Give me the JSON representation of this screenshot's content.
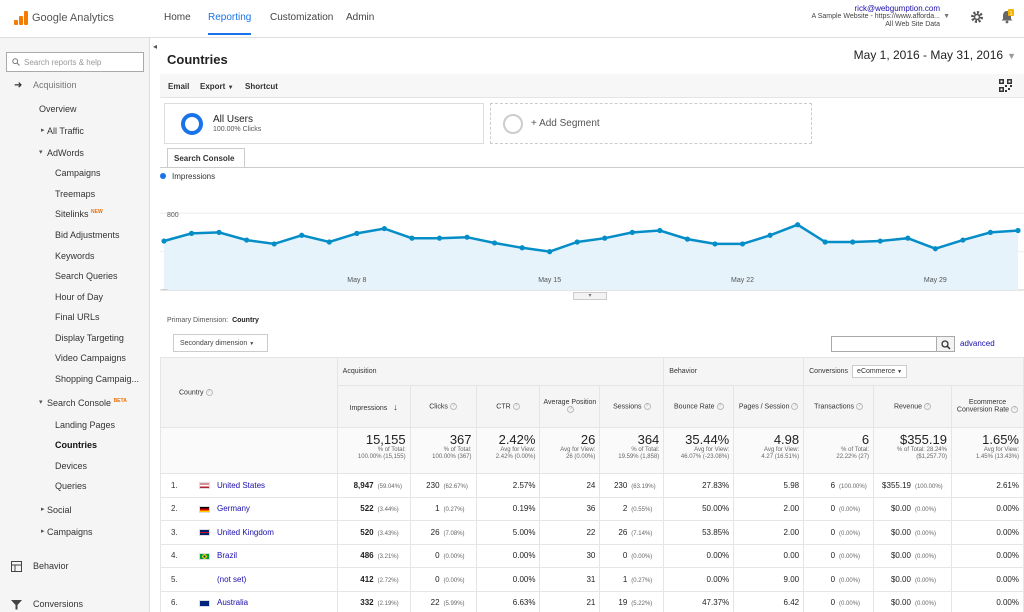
{
  "app": {
    "name": "Google Analytics"
  },
  "topnav": {
    "home": "Home",
    "reporting": "Reporting",
    "customization": "Customization",
    "admin": "Admin"
  },
  "account": {
    "email": "rick@webgumption.com",
    "site": "A Sample Website - https://www.afforda...",
    "view": "All Web Site Data",
    "notifications": "1"
  },
  "sidebar": {
    "search_placeholder": "Search reports & help",
    "acquisition": "Acquisition",
    "overview": "Overview",
    "all_traffic": "All Traffic",
    "adwords": "AdWords",
    "adwords_items": [
      "Campaigns",
      "Treemaps",
      "Sitelinks",
      "Bid Adjustments",
      "Keywords",
      "Search Queries",
      "Hour of Day",
      "Final URLs",
      "Display Targeting",
      "Video Campaigns",
      "Shopping Campaig..."
    ],
    "new_badge": "NEW",
    "search_console": "Search Console",
    "beta_badge": "BETA",
    "sc_items": [
      "Landing Pages",
      "Countries",
      "Devices",
      "Queries"
    ],
    "social": "Social",
    "campaigns": "Campaigns",
    "behavior": "Behavior",
    "conversions": "Conversions"
  },
  "page": {
    "title": "Countries",
    "date_range": "May 1, 2016 - May 31, 2016"
  },
  "toolbar": {
    "email": "Email",
    "export": "Export",
    "shortcut": "Shortcut"
  },
  "segments": {
    "name": "All Users",
    "pct": "100.00% Clicks",
    "add": "+ Add Segment"
  },
  "tab": {
    "label": "Search Console"
  },
  "colors": {
    "accent": "#1a73e8",
    "line": "#058dc7",
    "fill": "#e6f3fa",
    "link": "#1a0dab"
  },
  "chart_data": {
    "type": "line",
    "series": [
      {
        "name": "Impressions",
        "values": [
          510,
          590,
          600,
          520,
          480,
          570,
          500,
          590,
          640,
          540,
          540,
          550,
          490,
          440,
          400,
          500,
          540,
          600,
          620,
          530,
          480,
          480,
          570,
          680,
          500,
          500,
          510,
          540,
          430,
          520,
          600,
          620
        ]
      }
    ],
    "y_ticks": [
      "800",
      "400"
    ],
    "x_labels": [
      "May 8",
      "May 15",
      "May 22",
      "May 29"
    ],
    "start_label": "...",
    "ylim": [
      0,
      1000
    ]
  },
  "primary_dimension": {
    "label": "Primary Dimension:",
    "value": "Country"
  },
  "secondary_dimension": "Secondary dimension",
  "advanced": "advanced",
  "table": {
    "groups": {
      "acq": "Acquisition",
      "beh": "Behavior",
      "conv": "Conversions",
      "ecom": "eCommerce"
    },
    "columns": {
      "country": "Country",
      "impressions": "Impressions",
      "clicks": "Clicks",
      "ctr": "CTR",
      "pos": "Average Position",
      "sessions": "Sessions",
      "bounce": "Bounce Rate",
      "pps": "Pages / Session",
      "trans": "Transactions",
      "rev": "Revenue",
      "ecr": "Ecommerce Conversion Rate"
    },
    "totals": {
      "impressions": {
        "v": "15,155",
        "a": "% of Total:",
        "b": "100.00% (15,155)"
      },
      "clicks": {
        "v": "367",
        "a": "% of Total:",
        "b": "100.00% (367)"
      },
      "ctr": {
        "v": "2.42%",
        "a": "Avg for View:",
        "b": "2.42% (0.00%)"
      },
      "pos": {
        "v": "26",
        "a": "Avg for View:",
        "b": "26 (0.00%)"
      },
      "sessions": {
        "v": "364",
        "a": "% of Total:",
        "b": "19.59% (1,858)"
      },
      "bounce": {
        "v": "35.44%",
        "a": "Avg for View:",
        "b": "46.07% (-23.08%)"
      },
      "pps": {
        "v": "4.98",
        "a": "Avg for View:",
        "b": "4.27 (16.51%)"
      },
      "trans": {
        "v": "6",
        "a": "% of Total:",
        "b": "22.22% (27)"
      },
      "rev": {
        "v": "$355.19",
        "a": "% of Total: 28.24%",
        "b": "($1,257.70)"
      },
      "ecr": {
        "v": "1.65%",
        "a": "Avg for View:",
        "b": "1.45% (13.43%)"
      }
    },
    "rows": [
      {
        "idx": "1.",
        "country": "United States",
        "imp": "8,947",
        "imp_p": "(59.04%)",
        "clk": "230",
        "clk_p": "(62.67%)",
        "ctr": "2.57%",
        "pos": "24",
        "ses": "230",
        "ses_p": "(63.19%)",
        "br": "27.83%",
        "pps": "5.98",
        "tr": "6",
        "tr_p": "(100.00%)",
        "rev": "$355.19",
        "rev_p": "(100.00%)",
        "ecr": "2.61%"
      },
      {
        "idx": "2.",
        "country": "Germany",
        "imp": "522",
        "imp_p": "(3.44%)",
        "clk": "1",
        "clk_p": "(0.27%)",
        "ctr": "0.19%",
        "pos": "36",
        "ses": "2",
        "ses_p": "(0.55%)",
        "br": "50.00%",
        "pps": "2.00",
        "tr": "0",
        "tr_p": "(0.00%)",
        "rev": "$0.00",
        "rev_p": "(0.00%)",
        "ecr": "0.00%"
      },
      {
        "idx": "3.",
        "country": "United Kingdom",
        "imp": "520",
        "imp_p": "(3.43%)",
        "clk": "26",
        "clk_p": "(7.08%)",
        "ctr": "5.00%",
        "pos": "22",
        "ses": "26",
        "ses_p": "(7.14%)",
        "br": "53.85%",
        "pps": "2.00",
        "tr": "0",
        "tr_p": "(0.00%)",
        "rev": "$0.00",
        "rev_p": "(0.00%)",
        "ecr": "0.00%"
      },
      {
        "idx": "4.",
        "country": "Brazil",
        "imp": "486",
        "imp_p": "(3.21%)",
        "clk": "0",
        "clk_p": "(0.00%)",
        "ctr": "0.00%",
        "pos": "30",
        "ses": "0",
        "ses_p": "(0.00%)",
        "br": "0.00%",
        "pps": "0.00",
        "tr": "0",
        "tr_p": "(0.00%)",
        "rev": "$0.00",
        "rev_p": "(0.00%)",
        "ecr": "0.00%"
      },
      {
        "idx": "5.",
        "country": "(not set)",
        "imp": "412",
        "imp_p": "(2.72%)",
        "clk": "0",
        "clk_p": "(0.00%)",
        "ctr": "0.00%",
        "pos": "31",
        "ses": "1",
        "ses_p": "(0.27%)",
        "br": "0.00%",
        "pps": "9.00",
        "tr": "0",
        "tr_p": "(0.00%)",
        "rev": "$0.00",
        "rev_p": "(0.00%)",
        "ecr": "0.00%"
      },
      {
        "idx": "6.",
        "country": "Australia",
        "imp": "332",
        "imp_p": "(2.19%)",
        "clk": "22",
        "clk_p": "(5.99%)",
        "ctr": "6.63%",
        "pos": "21",
        "ses": "19",
        "ses_p": "(5.22%)",
        "br": "47.37%",
        "pps": "6.42",
        "tr": "0",
        "tr_p": "(0.00%)",
        "rev": "$0.00",
        "rev_p": "(0.00%)",
        "ecr": "0.00%"
      }
    ]
  }
}
